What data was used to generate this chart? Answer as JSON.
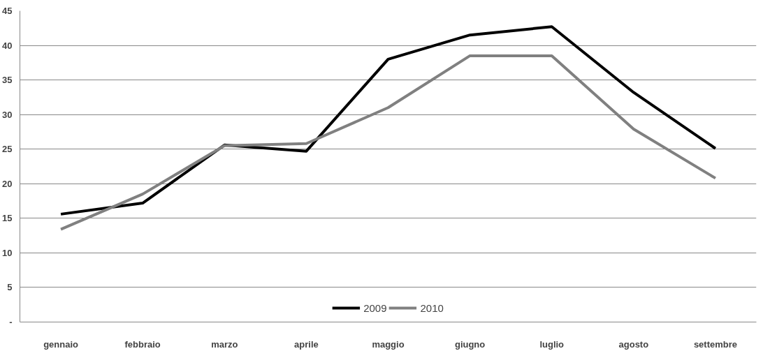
{
  "chart_data": {
    "type": "line",
    "categories": [
      "gennaio",
      "febbraio",
      "marzo",
      "aprile",
      "maggio",
      "giugno",
      "luglio",
      "agosto",
      "settembre"
    ],
    "series": [
      {
        "name": "2009",
        "color": "#000000",
        "values": [
          15.6,
          17.2,
          25.6,
          24.7,
          38.0,
          41.5,
          42.7,
          33.2,
          25.1
        ]
      },
      {
        "name": "2010",
        "color": "#808080",
        "values": [
          13.4,
          18.5,
          25.5,
          25.8,
          31.0,
          38.5,
          38.5,
          27.9,
          20.8
        ]
      }
    ],
    "ylim": [
      0,
      45
    ],
    "yticks": [
      {
        "value": 0,
        "label": "-"
      },
      5,
      10,
      15,
      20,
      25,
      30,
      35,
      40,
      45
    ],
    "grid": "y",
    "legend": "bottom",
    "line_style": "solid",
    "marker": "none"
  }
}
